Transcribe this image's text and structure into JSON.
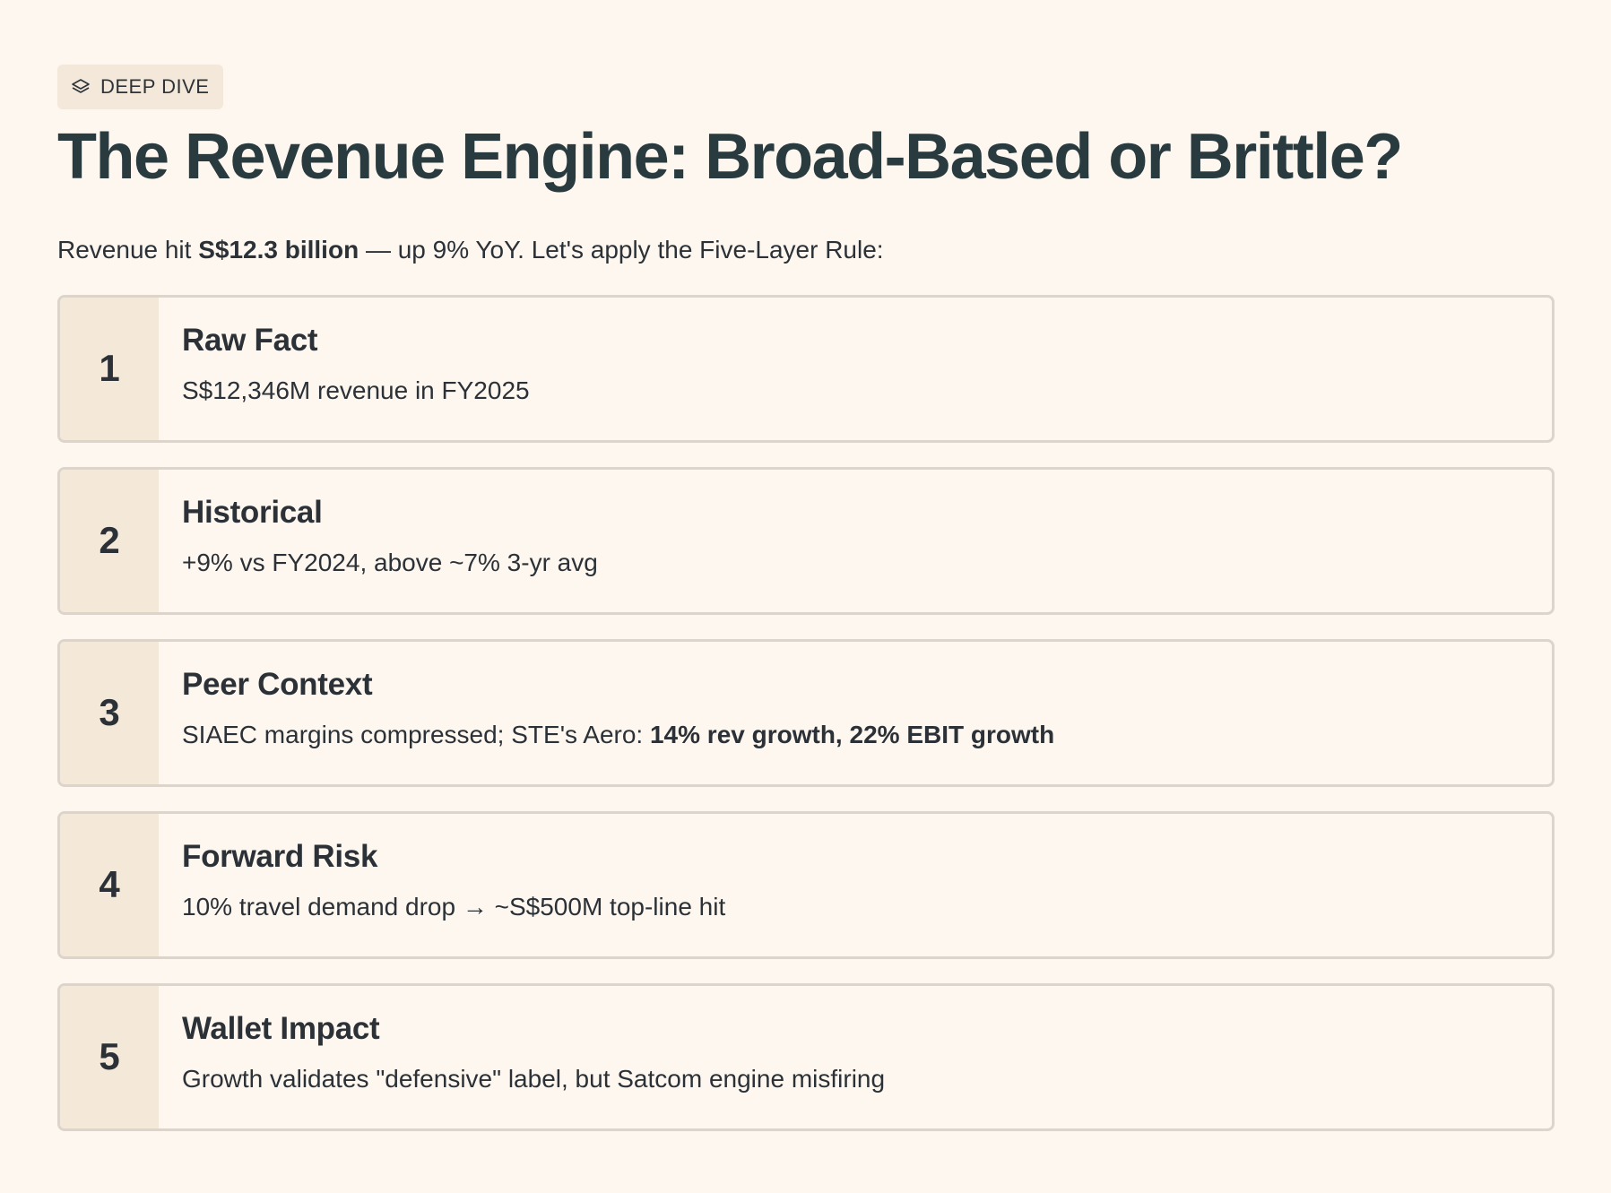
{
  "badge": {
    "icon": "layers-icon",
    "label": "DEEP DIVE"
  },
  "title": "The Revenue Engine: Broad-Based or Brittle?",
  "intro": {
    "prefix": "Revenue hit ",
    "highlight": "S$12.3 billion",
    "suffix": " — up 9% YoY. Let's apply the Five-Layer Rule:"
  },
  "layers": [
    {
      "number": "1",
      "title": "Raw Fact",
      "desc": "S$12,346M revenue in FY2025",
      "desc_bold": ""
    },
    {
      "number": "2",
      "title": "Historical",
      "desc": "+9% vs FY2024, above ~7% 3-yr avg",
      "desc_bold": ""
    },
    {
      "number": "3",
      "title": "Peer Context",
      "desc": "SIAEC margins compressed; STE's Aero: ",
      "desc_bold": "14% rev growth, 22% EBIT growth"
    },
    {
      "number": "4",
      "title": "Forward Risk",
      "desc": "10% travel demand drop → ~S$500M top-line hit",
      "desc_bold": ""
    },
    {
      "number": "5",
      "title": "Wallet Impact",
      "desc": "Growth validates \"defensive\" label, but Satcom engine misfiring",
      "desc_bold": ""
    }
  ]
}
